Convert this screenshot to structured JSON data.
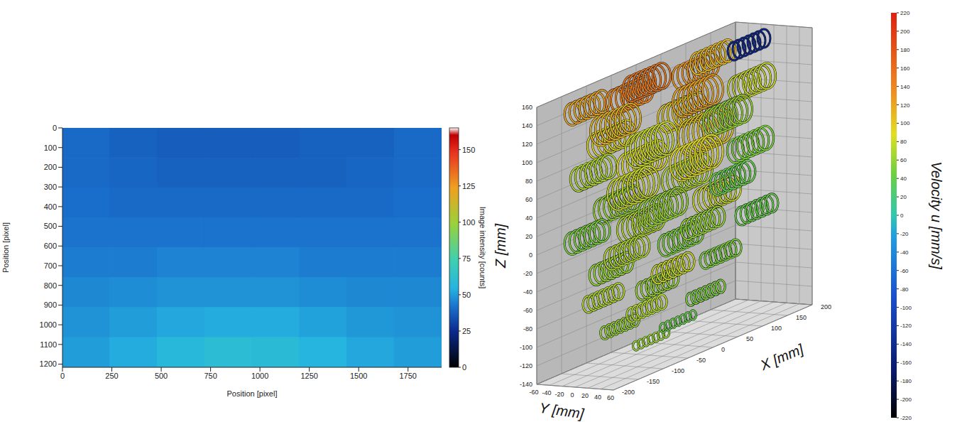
{
  "chart_data": [
    {
      "type": "heatmap",
      "xlabel": "Position [pixel]",
      "ylabel": "Position [pixel]",
      "xlim": [
        0,
        1920
      ],
      "ylim": [
        0,
        1216
      ],
      "xticks": [
        0,
        250,
        500,
        750,
        1000,
        1250,
        1500,
        1750
      ],
      "yticks": [
        0,
        100,
        200,
        300,
        400,
        500,
        600,
        700,
        800,
        900,
        1000,
        1100,
        1200
      ],
      "heatmap": {
        "x_edges": [
          0,
          240,
          480,
          720,
          960,
          1200,
          1440,
          1680,
          1920
        ],
        "y_edges": [
          0,
          152,
          304,
          456,
          608,
          760,
          912,
          1064,
          1216
        ],
        "values": [
          [
            40,
            38,
            37,
            37,
            37,
            38,
            38,
            40
          ],
          [
            40,
            39,
            38,
            38,
            38,
            38,
            39,
            40
          ],
          [
            41,
            40,
            40,
            40,
            40,
            40,
            40,
            41
          ],
          [
            42,
            42,
            42,
            42,
            42,
            42,
            42,
            42
          ],
          [
            44,
            44,
            45,
            45,
            45,
            44,
            44,
            44
          ],
          [
            46,
            47,
            48,
            48,
            48,
            47,
            46,
            46
          ],
          [
            48,
            50,
            52,
            53,
            53,
            51,
            49,
            48
          ],
          [
            50,
            53,
            57,
            60,
            59,
            55,
            52,
            50
          ]
        ]
      },
      "colorbar": {
        "label": "Image intensity [counts]",
        "range": [
          0,
          165
        ],
        "ticks": [
          0,
          25,
          50,
          75,
          100,
          125,
          150
        ]
      }
    },
    {
      "type": "3d_rings",
      "xlabel": "X [mm]",
      "ylabel": "Y [mm]",
      "zlabel": "Z [mm]",
      "xlim": [
        -200,
        200
      ],
      "ylim": [
        -60,
        60
      ],
      "zlim": [
        -140,
        160
      ],
      "xticks": [
        -200,
        -150,
        -100,
        -50,
        0,
        50,
        100,
        150,
        200
      ],
      "yticks": [
        -60,
        -40,
        -20,
        0,
        20,
        40,
        60
      ],
      "zticks": [
        -140,
        -120,
        -100,
        -80,
        -60,
        -40,
        -20,
        0,
        20,
        40,
        60,
        80,
        100,
        120,
        140,
        160
      ],
      "rings": [
        {
          "x": -150,
          "y": -20,
          "z": 150,
          "r": 12,
          "u": 120
        },
        {
          "x": -90,
          "y": 0,
          "z": 150,
          "r": 14,
          "u": 140
        },
        {
          "x": -30,
          "y": -20,
          "z": 150,
          "r": 14,
          "u": 150
        },
        {
          "x": 30,
          "y": 10,
          "z": 150,
          "r": 13,
          "u": 130
        },
        {
          "x": 90,
          "y": -10,
          "z": 150,
          "r": 12,
          "u": 110
        },
        {
          "x": 150,
          "y": 0,
          "z": 150,
          "r": 10,
          "u": -150
        },
        {
          "x": -140,
          "y": 10,
          "z": 115,
          "r": 14,
          "u": 90
        },
        {
          "x": -80,
          "y": -30,
          "z": 115,
          "r": 16,
          "u": 110
        },
        {
          "x": -10,
          "y": 20,
          "z": 115,
          "r": 15,
          "u": 100
        },
        {
          "x": 60,
          "y": -10,
          "z": 115,
          "r": 16,
          "u": 120
        },
        {
          "x": 130,
          "y": 20,
          "z": 115,
          "r": 14,
          "u": 80
        },
        {
          "x": -150,
          "y": -10,
          "z": 80,
          "r": 13,
          "u": 70
        },
        {
          "x": -90,
          "y": 20,
          "z": 80,
          "r": 16,
          "u": 90
        },
        {
          "x": -20,
          "y": -20,
          "z": 80,
          "r": 18,
          "u": 80
        },
        {
          "x": 50,
          "y": 10,
          "z": 80,
          "r": 20,
          "u": 100
        },
        {
          "x": 120,
          "y": -10,
          "z": 80,
          "r": 15,
          "u": 60
        },
        {
          "x": -140,
          "y": 20,
          "z": 45,
          "r": 14,
          "u": 60
        },
        {
          "x": -70,
          "y": -10,
          "z": 45,
          "r": 17,
          "u": 80
        },
        {
          "x": 0,
          "y": 20,
          "z": 45,
          "r": 16,
          "u": 70
        },
        {
          "x": 70,
          "y": -20,
          "z": 45,
          "r": 18,
          "u": 90
        },
        {
          "x": 140,
          "y": 10,
          "z": 45,
          "r": 13,
          "u": 50
        },
        {
          "x": -150,
          "y": -20,
          "z": 10,
          "r": 12,
          "u": 50
        },
        {
          "x": -80,
          "y": 10,
          "z": 10,
          "r": 14,
          "u": 70
        },
        {
          "x": -10,
          "y": -10,
          "z": 10,
          "r": 15,
          "u": 60
        },
        {
          "x": 60,
          "y": 20,
          "z": 10,
          "r": 14,
          "u": 80
        },
        {
          "x": 130,
          "y": -10,
          "z": 10,
          "r": 12,
          "u": 40
        },
        {
          "x": -140,
          "y": 10,
          "z": -25,
          "r": 11,
          "u": 60
        },
        {
          "x": -70,
          "y": -20,
          "z": -25,
          "r": 12,
          "u": 70
        },
        {
          "x": 0,
          "y": 10,
          "z": -25,
          "r": 12,
          "u": 50
        },
        {
          "x": 70,
          "y": -10,
          "z": -25,
          "r": 11,
          "u": 60
        },
        {
          "x": 140,
          "y": 20,
          "z": -25,
          "r": 10,
          "u": 40
        },
        {
          "x": -130,
          "y": -10,
          "z": -60,
          "r": 9,
          "u": 70
        },
        {
          "x": -60,
          "y": 20,
          "z": -60,
          "r": 10,
          "u": 60
        },
        {
          "x": 10,
          "y": -10,
          "z": -60,
          "r": 10,
          "u": 80
        },
        {
          "x": 80,
          "y": 10,
          "z": -60,
          "r": 9,
          "u": 50
        },
        {
          "x": -110,
          "y": 0,
          "z": -95,
          "r": 7,
          "u": 60
        },
        {
          "x": -30,
          "y": -20,
          "z": -95,
          "r": 8,
          "u": 70
        },
        {
          "x": 50,
          "y": 10,
          "z": -95,
          "r": 7,
          "u": 50
        },
        {
          "x": -60,
          "y": 10,
          "z": -120,
          "r": 5,
          "u": 60
        },
        {
          "x": 20,
          "y": -10,
          "z": -120,
          "r": 5,
          "u": 40
        }
      ],
      "colorbar": {
        "label": "Velocity u [mm/s]",
        "range": [
          -220,
          220
        ],
        "ticks": [
          -220,
          -200,
          -180,
          -160,
          -140,
          -120,
          -100,
          -80,
          -60,
          -40,
          -20,
          0,
          20,
          40,
          60,
          80,
          100,
          120,
          140,
          160,
          180,
          200,
          220
        ]
      }
    }
  ]
}
